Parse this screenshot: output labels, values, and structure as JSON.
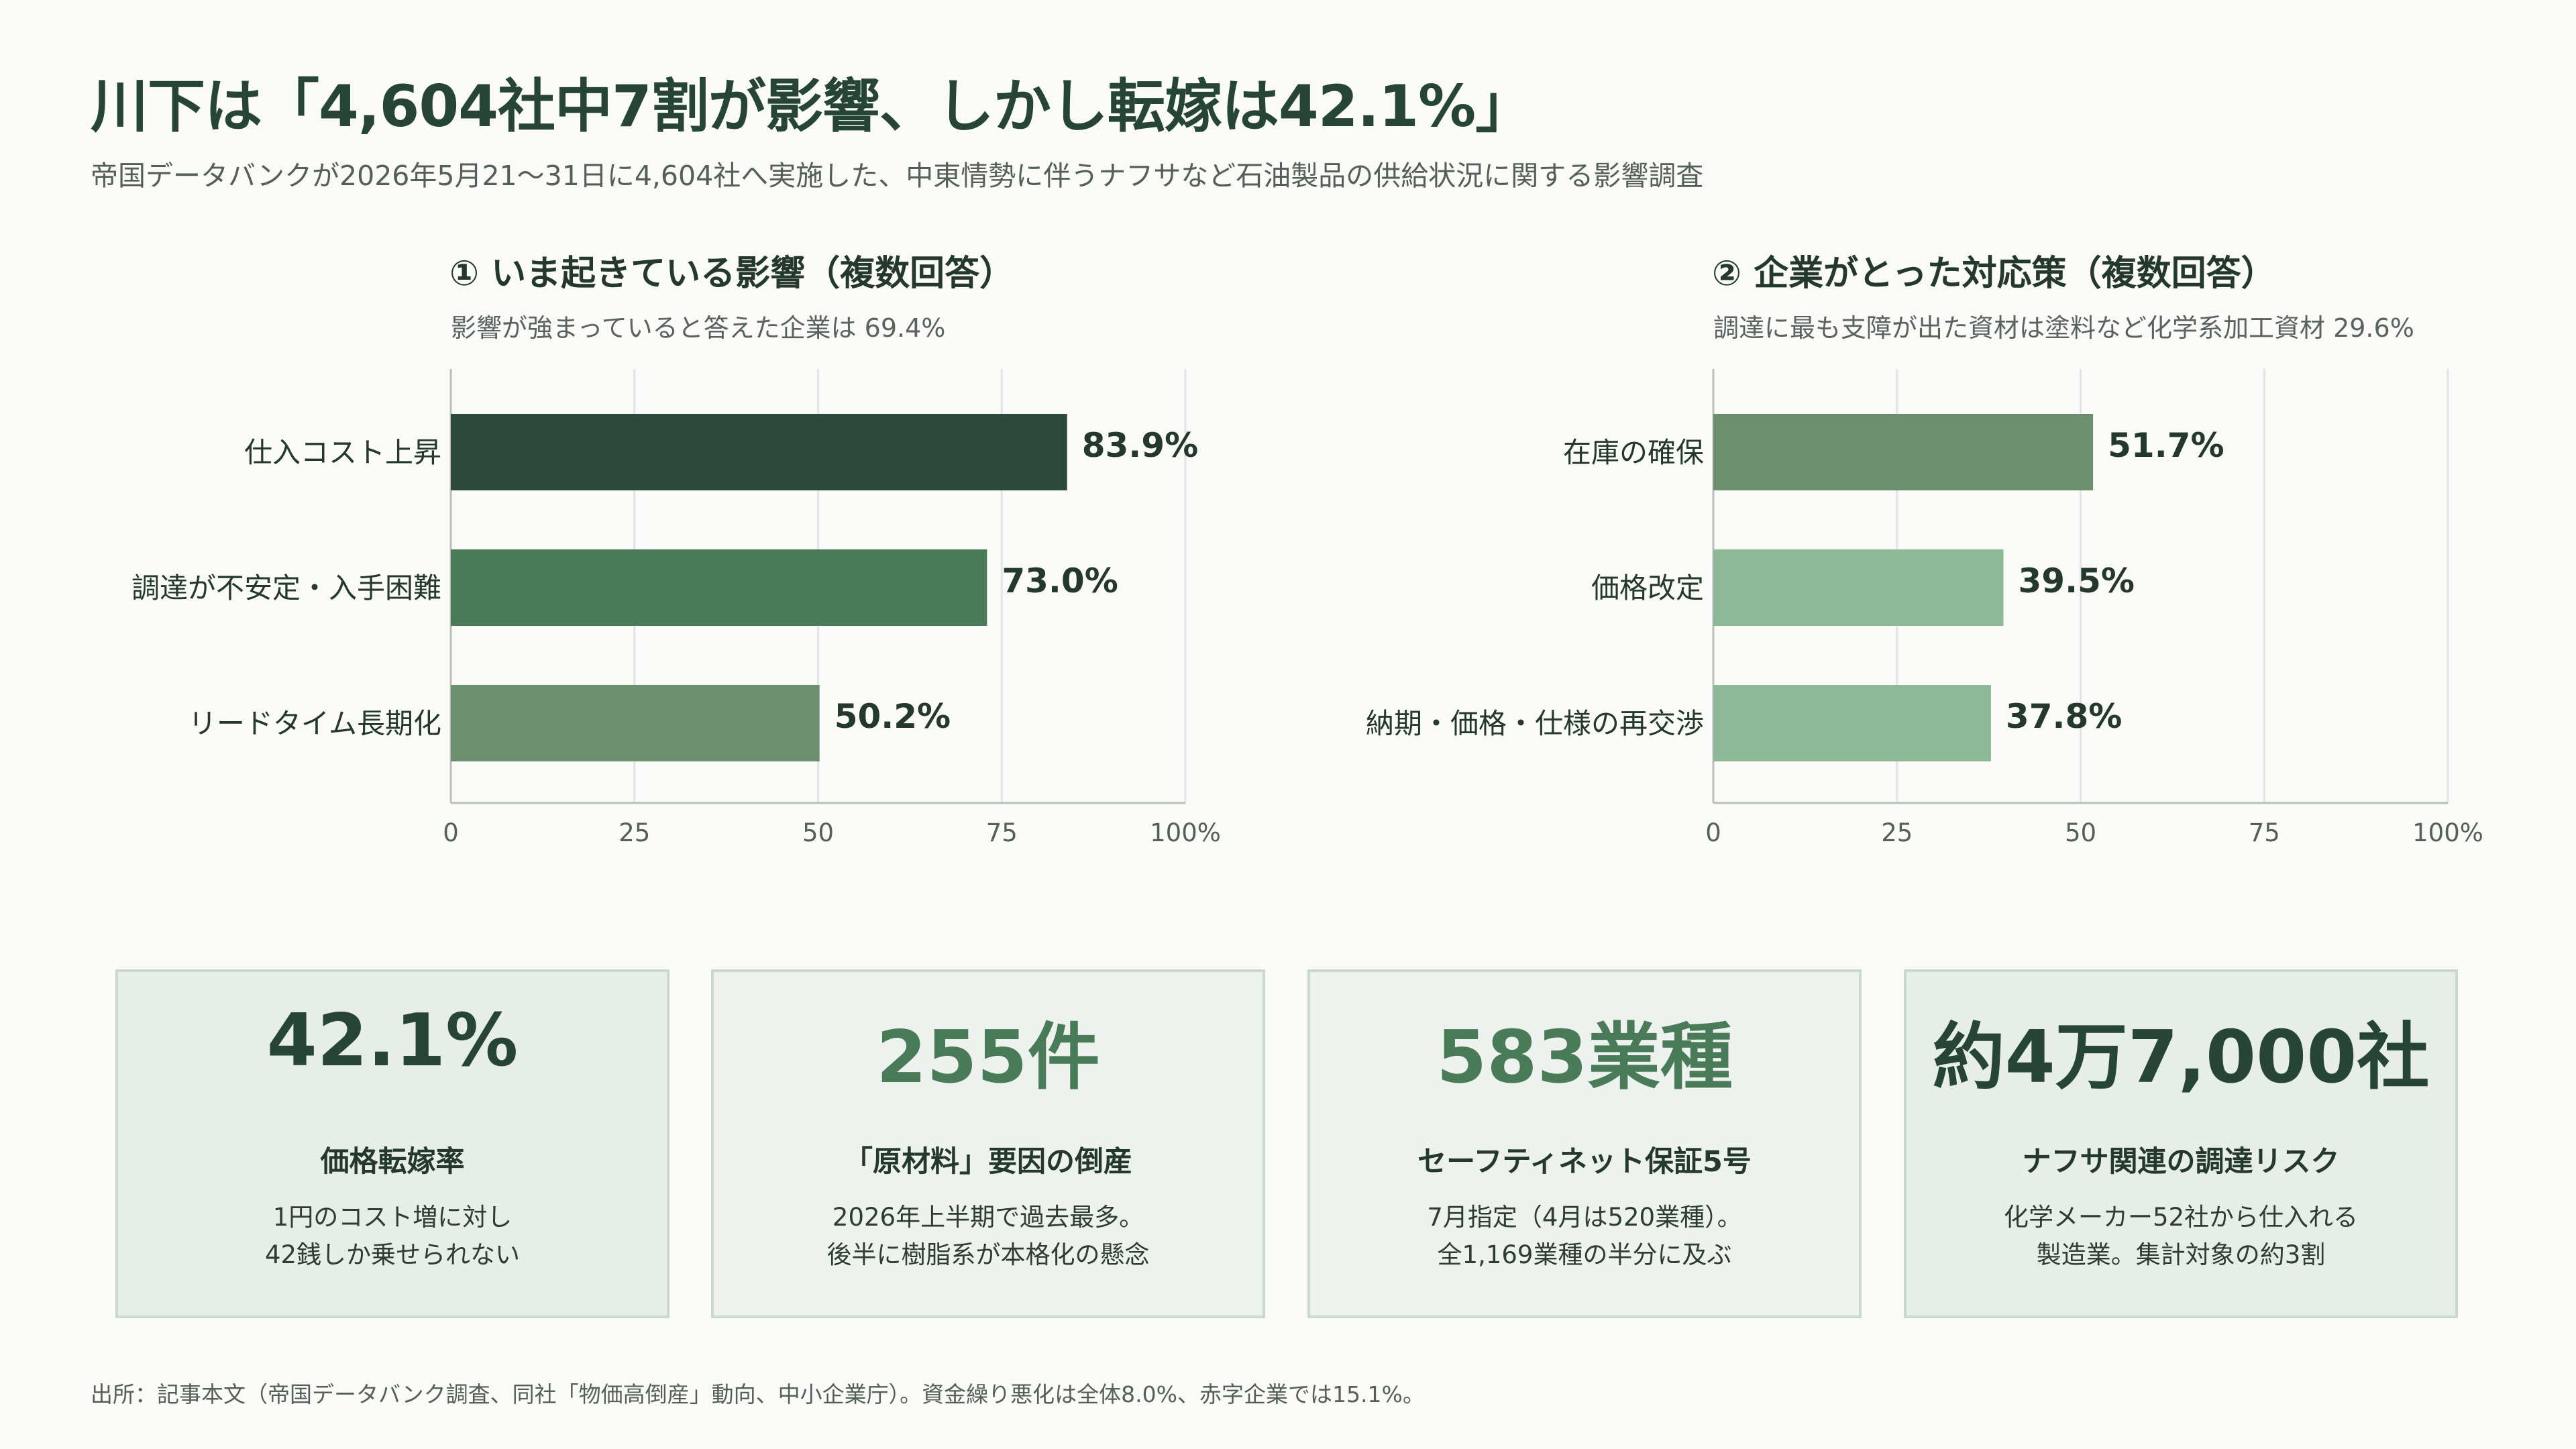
{
  "title": "川下は「4,604社中7割が影響、しかし転嫁は42.1%」",
  "subtitle": "帝国データバンクが2026年5月21〜31日に4,604社へ実施した、中東情勢に伴うナフサなど石油製品の供給状況に関する影響調査",
  "chart_data": [
    {
      "type": "bar",
      "orientation": "horizontal",
      "title": "① いま起きている影響（複数回答）",
      "subtitle": "影響が強まっていると答えた企業は 69.4%",
      "categories": [
        "仕入コスト上昇",
        "調達が不安定・入手困難",
        "リードタイム長期化"
      ],
      "values": [
        83.9,
        73.0,
        50.2
      ],
      "value_labels": [
        "83.9%",
        "73.0%",
        "50.2%"
      ],
      "bar_colors": [
        "#2c4a3c",
        "#4a7b58",
        "#6c8f6d"
      ],
      "xlim": [
        0,
        100
      ],
      "ticks": [
        0,
        25,
        50,
        75,
        100
      ],
      "tick_labels": [
        "0",
        "25",
        "50",
        "75",
        "100%"
      ],
      "grid": true
    },
    {
      "type": "bar",
      "orientation": "horizontal",
      "title": "② 企業がとった対応策（複数回答）",
      "subtitle": "調達に最も支障が出た資材は塗料など化学系加工資材 29.6%",
      "categories": [
        "在庫の確保",
        "価格改定",
        "納期・価格・仕様の再交渉"
      ],
      "values": [
        51.7,
        39.5,
        37.8
      ],
      "value_labels": [
        "51.7%",
        "39.5%",
        "37.8%"
      ],
      "bar_colors": [
        "#6c8f6d",
        "#8eb996",
        "#8eb996"
      ],
      "xlim": [
        0,
        100
      ],
      "ticks": [
        0,
        25,
        50,
        75,
        100
      ],
      "tick_labels": [
        "0",
        "25",
        "50",
        "75",
        "100%"
      ],
      "grid": true
    }
  ],
  "cards": [
    {
      "value": "42.1%",
      "label": "価格転嫁率",
      "desc": [
        "1円のコスト増に対し",
        "42銭しか乗せられない"
      ],
      "bg": "#e6eee7",
      "value_color": "#264536"
    },
    {
      "value": "255件",
      "label": "「原材料」要因の倒産",
      "desc": [
        "2026年上半期で過去最多。",
        "後半に樹脂系が本格化の懸念"
      ],
      "bg": "#edf2ee",
      "value_color": "#4a7b58"
    },
    {
      "value": "583業種",
      "label": "セーフティネット保証5号",
      "desc": [
        "7月指定（4月は520業種）。",
        "全1,169業種の半分に及ぶ"
      ],
      "bg": "#edf2ee",
      "value_color": "#4a7b58"
    },
    {
      "value": "約4万7,000社",
      "label": "ナフサ関連の調達リスク",
      "desc": [
        "化学メーカー52社から仕入れる",
        "製造業。集計対象の約3割"
      ],
      "bg": "#e6eee7",
      "value_color": "#264536"
    }
  ],
  "source": "出所：記事本文（帝国データバンク調査、同社「物価高倒産」動向、中小企業庁）。資金繰り悪化は全体8.0%、赤字企業では15.1%。"
}
